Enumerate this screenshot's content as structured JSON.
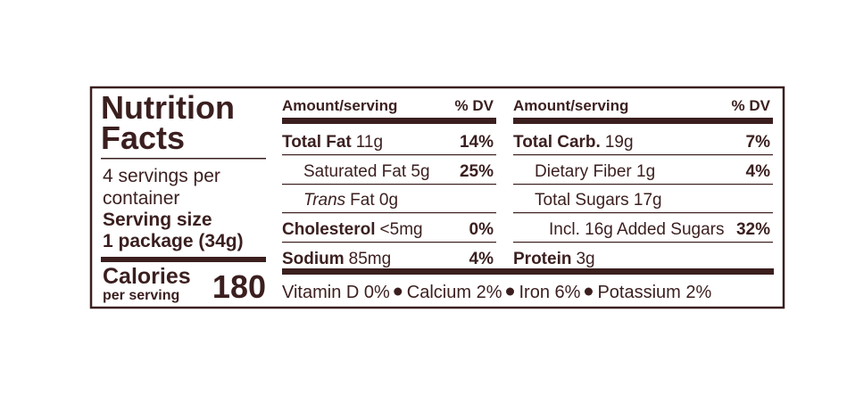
{
  "title_line1": "Nutrition",
  "title_line2": "Facts",
  "servings_line1": "4 servings per",
  "servings_line2": "container",
  "serving_size_label": "Serving size",
  "serving_size": "1 package (34g)",
  "calories_label": "Calories",
  "calories_sub": "per serving",
  "calories": 180,
  "columns": [
    {
      "header_amount": "Amount/serving",
      "header_dv": "% DV",
      "rows": [
        {
          "label": "Total Fat",
          "text": "11g",
          "dv": "14%"
        },
        {
          "text": "Saturated Fat 5g",
          "dv": "25%",
          "indent": 1
        },
        {
          "italic": "Trans",
          "text": "Fat 0g",
          "indent": 1
        },
        {
          "label": "Cholesterol",
          "text": "<5mg",
          "dv": "0%"
        },
        {
          "label": "Sodium",
          "text": "85mg",
          "dv": "4%"
        }
      ]
    },
    {
      "header_amount": "Amount/serving",
      "header_dv": "% DV",
      "rows": [
        {
          "label": "Total Carb.",
          "text": "19g",
          "dv": "7%"
        },
        {
          "text": "Dietary Fiber 1g",
          "dv": "4%",
          "indent": 1
        },
        {
          "text": "Total Sugars 17g",
          "indent": 1
        },
        {
          "text": "Incl. 16g Added Sugars",
          "dv": "32%",
          "indent": 2
        },
        {
          "label": "Protein",
          "text": "3g"
        }
      ]
    }
  ],
  "footer": [
    "Vitamin D 0%",
    "Calcium 2%",
    "Iron 6%",
    "Potassium 2%"
  ]
}
